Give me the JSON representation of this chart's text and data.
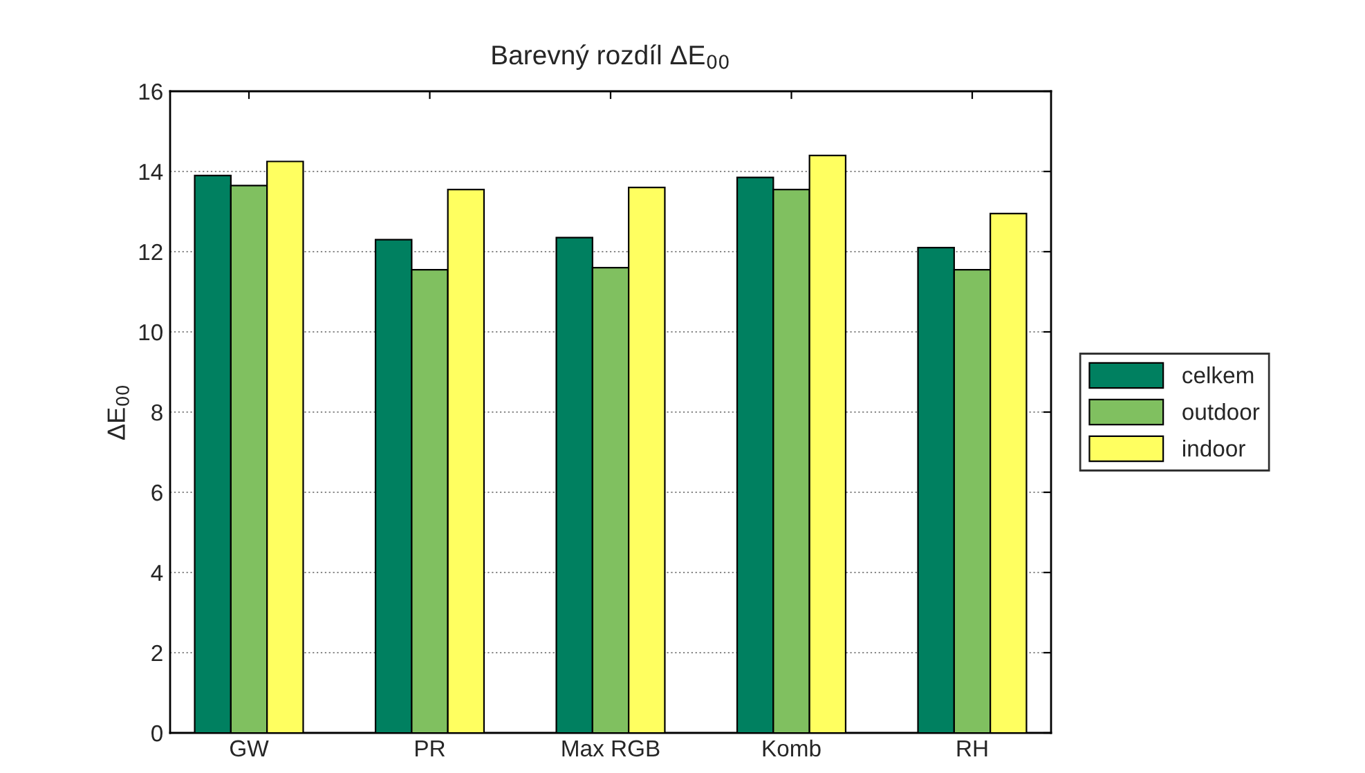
{
  "chart_data": {
    "type": "bar",
    "title": "Barevný rozdíl ΔE$_{00}$",
    "ylabel": "ΔE$_{00}$",
    "categories": [
      "GW",
      "PR",
      "Max RGB",
      "Komb",
      "RH"
    ],
    "series": [
      {
        "name": "celkem",
        "color": "#008060",
        "values": [
          13.9,
          12.3,
          12.35,
          13.85,
          12.1
        ]
      },
      {
        "name": "outdoor",
        "color": "#80c060",
        "values": [
          13.65,
          11.55,
          11.6,
          13.55,
          11.55
        ]
      },
      {
        "name": "indoor",
        "color": "#ffff60",
        "values": [
          14.25,
          13.55,
          13.6,
          14.4,
          12.95
        ]
      }
    ],
    "ylim": [
      0,
      16
    ],
    "yticks": [
      0,
      2,
      4,
      6,
      8,
      10,
      12,
      14,
      16
    ],
    "grid": "y",
    "legend": "right"
  }
}
